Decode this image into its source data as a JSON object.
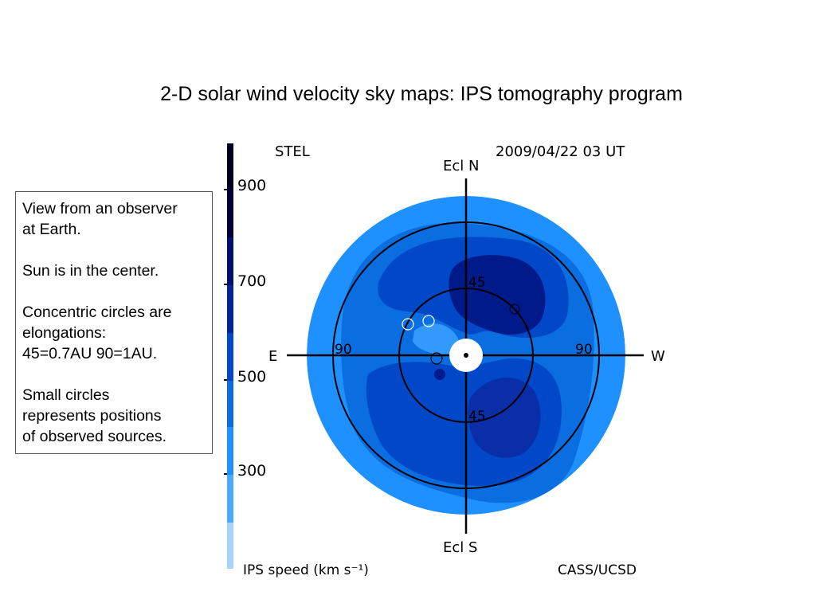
{
  "slide": {
    "title": "2-D solar wind velocity sky maps: IPS tomography program"
  },
  "notes": [
    "View from an observer\nat Earth.",
    "Sun is in the center.",
    "Concentric circles are\nelongations:\n45=0.7AU 90=1AU.",
    "Small circles\nrepresents positions\nof observed sources."
  ],
  "map": {
    "source_label": "STEL",
    "timestamp": "2009/04/22 03 UT",
    "credit": "CASS/UCSD",
    "north_label": "Ecl N",
    "south_label": "Ecl S",
    "east_label": "E",
    "west_label": "W",
    "ring_labels": {
      "inner_top": "45",
      "inner_bottom": "45",
      "outer_left": "90",
      "outer_right": "90"
    },
    "colors": {
      "c300": "#1e90ff",
      "c400": "#0a6de0",
      "c500": "#0048c8",
      "c600": "#0a2ea8",
      "c700": "#001a8a"
    }
  },
  "colorbar": {
    "tick_labels": [
      "900",
      "700",
      "500",
      "300"
    ],
    "caption": "IPS speed (km s⁻¹)",
    "colors": [
      "#000022",
      "#00003c",
      "#001070",
      "#0048c8",
      "#1e90ff",
      "#4aaaff",
      "#a6d4ff"
    ]
  }
}
